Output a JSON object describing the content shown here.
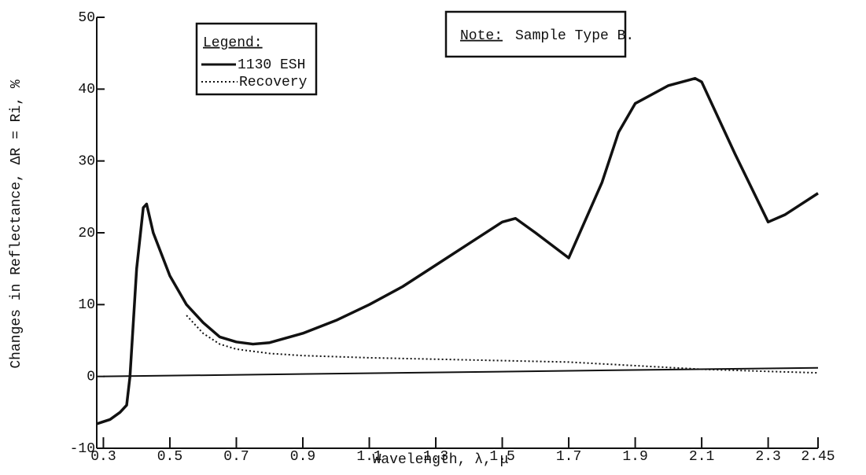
{
  "chart_data": {
    "type": "line",
    "xlabel": "Wavelength, λ, μ",
    "ylabel": "Changes in Reflectance, ΔR = Ri, %",
    "xlim": [
      0.28,
      2.45
    ],
    "ylim": [
      -10,
      50
    ],
    "xticks": [
      0.3,
      0.5,
      0.7,
      0.9,
      1.1,
      1.3,
      1.5,
      1.7,
      1.9,
      2.1,
      2.3,
      2.45
    ],
    "yticks": [
      -10,
      0,
      10,
      20,
      30,
      40,
      50
    ],
    "legend": {
      "title": "Legend:",
      "position": "upper left"
    },
    "note": {
      "label": "Note:",
      "text": "Sample Type B."
    },
    "series": [
      {
        "name": "1130 ESH",
        "color": "#111111",
        "style": "solid",
        "x": [
          0.28,
          0.32,
          0.35,
          0.37,
          0.38,
          0.4,
          0.42,
          0.43,
          0.45,
          0.5,
          0.55,
          0.6,
          0.65,
          0.7,
          0.75,
          0.8,
          0.9,
          1.0,
          1.1,
          1.2,
          1.3,
          1.4,
          1.5,
          1.54,
          1.6,
          1.7,
          1.8,
          1.85,
          1.9,
          2.0,
          2.08,
          2.1,
          2.2,
          2.3,
          2.35,
          2.45
        ],
        "values": [
          -6.6,
          -6,
          -5,
          -4,
          0,
          15,
          23.5,
          24,
          20,
          14,
          10,
          7.5,
          5.5,
          4.8,
          4.5,
          4.7,
          6,
          7.8,
          10,
          12.5,
          15.5,
          18.5,
          21.5,
          22,
          20,
          16.5,
          27,
          34,
          38,
          40.5,
          41.5,
          41,
          31,
          21.5,
          22.5,
          25.5
        ]
      },
      {
        "name": "Recovery",
        "color": "#111111",
        "style": "dotted",
        "x": [
          0.55,
          0.6,
          0.65,
          0.7,
          0.8,
          0.9,
          1.1,
          1.3,
          1.5,
          1.7,
          1.9,
          2.1,
          2.3,
          2.45
        ],
        "values": [
          8.5,
          6,
          4.5,
          3.8,
          3.2,
          2.9,
          2.6,
          2.4,
          2.2,
          2,
          1.5,
          1,
          0.7,
          0.5
        ]
      },
      {
        "color": "#111111",
        "style": "thin",
        "x": [
          0.3,
          2.45
        ],
        "values": [
          0,
          1.2
        ]
      }
    ]
  }
}
